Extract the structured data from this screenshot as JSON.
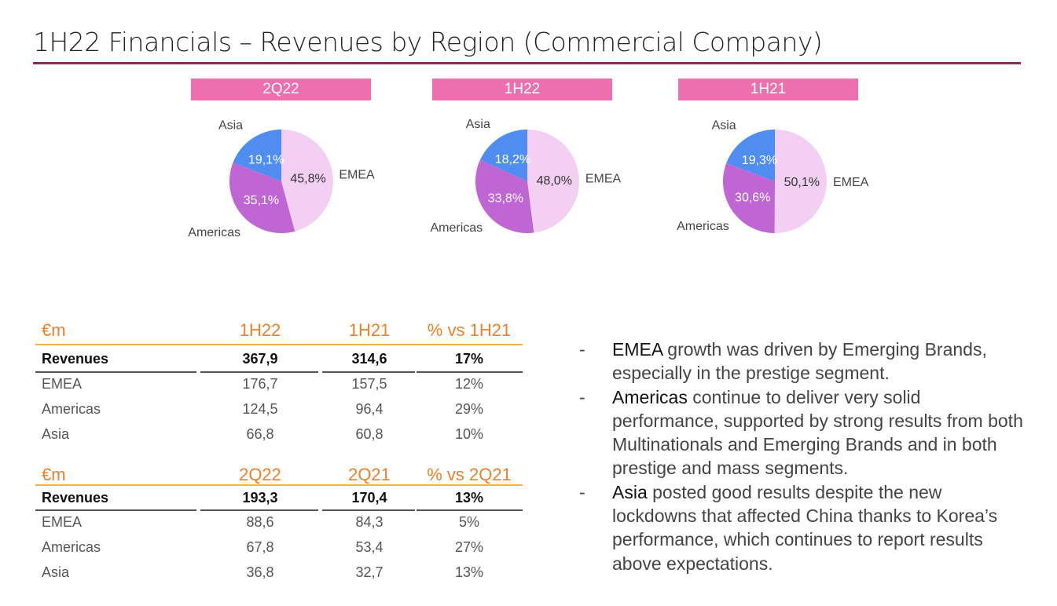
{
  "title": "1H22 Financials – Revenues by Region (Commercial Company)",
  "chart_data": [
    {
      "type": "pie",
      "title": "2Q22",
      "categories": [
        "EMEA",
        "Americas",
        "Asia"
      ],
      "values": [
        45.8,
        35.1,
        19.1
      ],
      "value_labels": [
        "45,8%",
        "35,1%",
        "19,1%"
      ],
      "colors": [
        "#f3cff3",
        "#c066d4",
        "#4f8ef0"
      ]
    },
    {
      "type": "pie",
      "title": "1H22",
      "categories": [
        "EMEA",
        "Americas",
        "Asia"
      ],
      "values": [
        48.0,
        33.8,
        18.2
      ],
      "value_labels": [
        "48,0%",
        "33,8%",
        "18,2%"
      ],
      "colors": [
        "#f3cff3",
        "#c066d4",
        "#4f8ef0"
      ]
    },
    {
      "type": "pie",
      "title": "1H21",
      "categories": [
        "EMEA",
        "Americas",
        "Asia"
      ],
      "values": [
        50.1,
        30.6,
        19.3
      ],
      "value_labels": [
        "50,1%",
        "30,6%",
        "19,3%"
      ],
      "colors": [
        "#f3cff3",
        "#c066d4",
        "#4f8ef0"
      ]
    }
  ],
  "tables": [
    {
      "headers": [
        "€m",
        "1H22",
        "1H21",
        "% vs 1H21"
      ],
      "rows": [
        [
          "Revenues",
          "367,9",
          "314,6",
          "17%"
        ],
        [
          "EMEA",
          "176,7",
          "157,5",
          "12%"
        ],
        [
          "Americas",
          "124,5",
          "96,4",
          "29%"
        ],
        [
          "Asia",
          "66,8",
          "60,8",
          "10%"
        ]
      ]
    },
    {
      "headers": [
        "€m",
        "2Q22",
        "2Q21",
        "% vs 2Q21"
      ],
      "rows": [
        [
          "Revenues",
          "193,3",
          "170,4",
          "13%"
        ],
        [
          "EMEA",
          "88,6",
          "84,3",
          "5%"
        ],
        [
          "Americas",
          "67,8",
          "53,4",
          "27%"
        ],
        [
          "Asia",
          "36,8",
          "32,7",
          "13%"
        ]
      ]
    }
  ],
  "bullets": [
    {
      "dash": "-",
      "lead": "EMEA",
      "text": " growth was driven by Emerging Brands, especially in the prestige segment."
    },
    {
      "dash": "-",
      "lead": "Americas",
      "text": " continue to deliver very solid performance, supported by strong results from both Multinationals and Emerging Brands and in both prestige and mass segments."
    },
    {
      "dash": "-",
      "lead": "Asia",
      "text": " posted good results despite the new lockdowns that affected China thanks to Korea’s performance, which continues to report results above expectations."
    }
  ]
}
